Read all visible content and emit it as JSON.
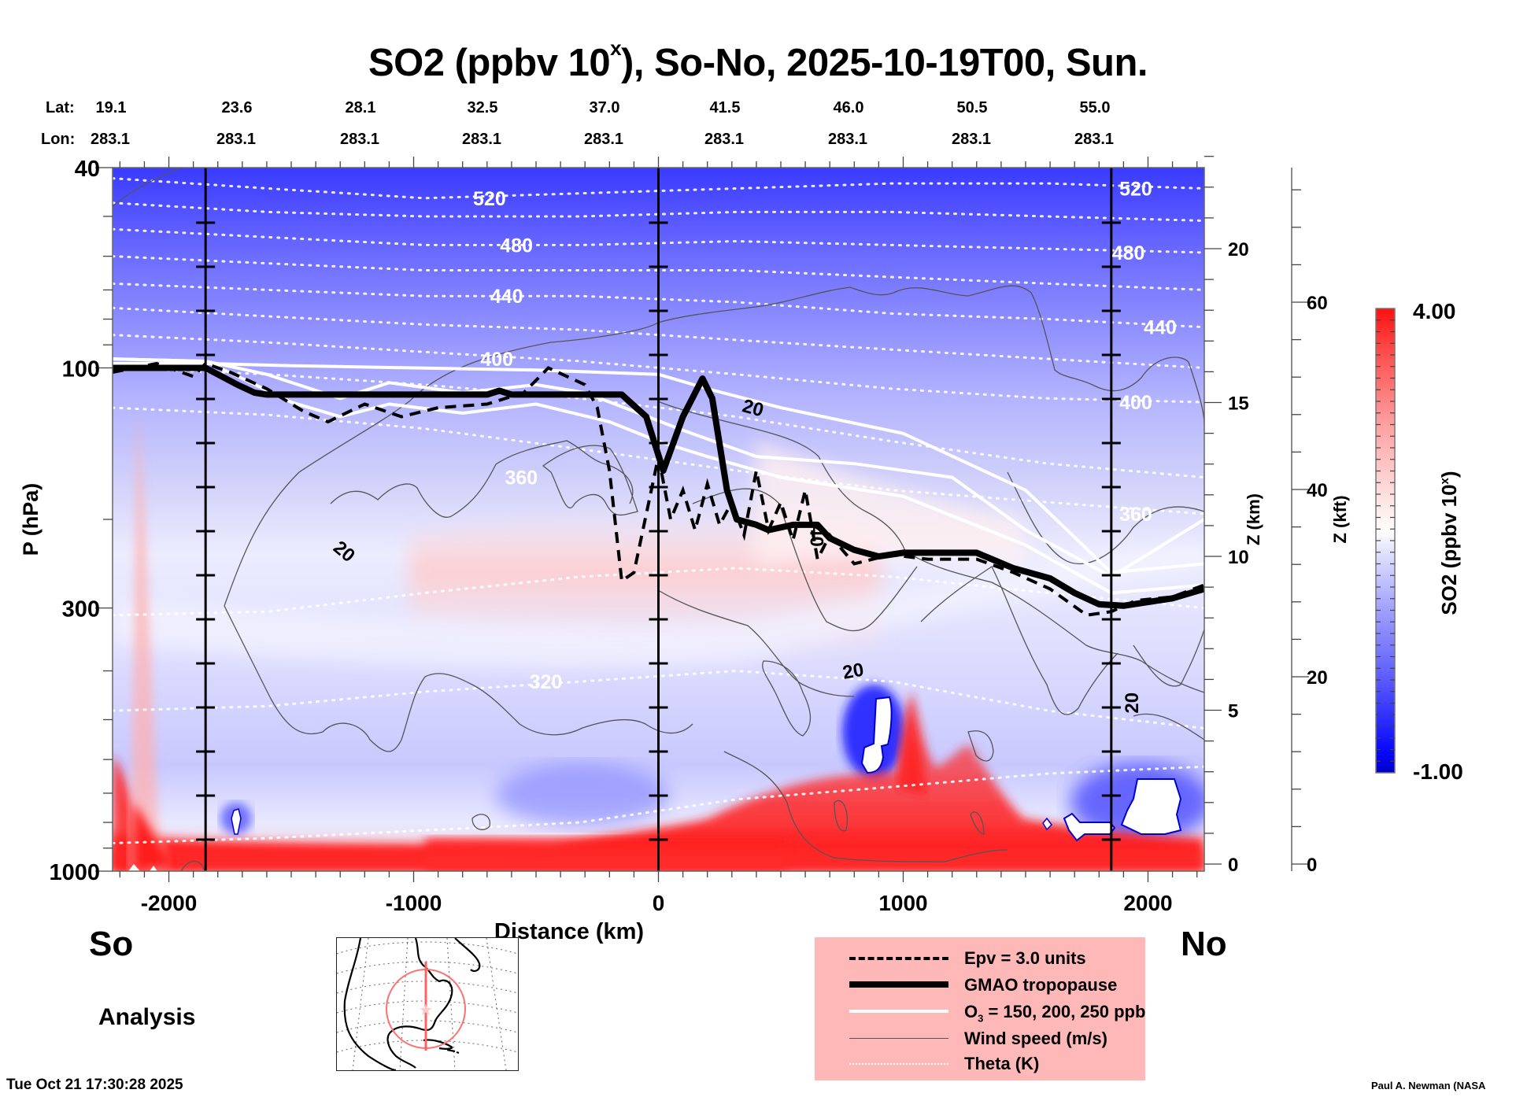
{
  "header": {
    "title_main": "SO2 (ppbv 10",
    "title_sup": "x",
    "title_rest": "), So-No, 2025-10-19T00, Sun."
  },
  "coords": {
    "lat_label": "Lat:",
    "lon_label": "Lon:",
    "lat": [
      "19.1",
      "23.6",
      "28.1",
      "32.5",
      "37.0",
      "41.5",
      "46.0",
      "50.5",
      "55.0"
    ],
    "lon": [
      "283.1",
      "283.1",
      "283.1",
      "283.1",
      "283.1",
      "283.1",
      "283.1",
      "283.1",
      "283.1"
    ]
  },
  "chart_data": {
    "type": "heatmap",
    "title": "SO2 (ppbv 10^x), So-No, 2025-10-19T00, Sun.",
    "xlabel": "Distance (km)",
    "ylabel": "P (hPa)",
    "y2label": "Z (km)",
    "y3label": "Z (kft)",
    "colorbar_label": "SO2 (ppbv 10^x)",
    "colorbar_label_main": "SO2 (ppbv 10",
    "colorbar_label_sup": "x",
    "colorbar_label_rest": ")",
    "colorbar_range": [
      -1.0,
      4.0
    ],
    "colorbar_ticks": [
      "4.00",
      "-1.00"
    ],
    "colormap": [
      "#0000c8",
      "#1010ff",
      "#6060ff",
      "#a8a8ff",
      "#e0e0ff",
      "#ffffff",
      "#ffe0e0",
      "#ffa0a0",
      "#ff6060",
      "#ff1010"
    ],
    "xlim": [
      -2230,
      2230
    ],
    "x_ticks": [
      -2000,
      -1000,
      0,
      1000,
      2000
    ],
    "x_tick_labels": [
      "-2000",
      "-1000",
      "0",
      "1000",
      "2000"
    ],
    "ylim_hpa": [
      1000,
      40
    ],
    "y_scale": "log",
    "y_ticks": [
      40,
      100,
      300,
      1000
    ],
    "y_tick_labels": [
      "40",
      "100",
      "300",
      "1000"
    ],
    "z_km_ticks": [
      0,
      5,
      10,
      15,
      20
    ],
    "z_km_tick_labels": [
      "0",
      "5",
      "10",
      "15",
      "20"
    ],
    "z_kft_ticks": [
      0,
      20,
      40,
      60
    ],
    "z_kft_tick_labels": [
      "0",
      "20",
      "40",
      "60"
    ],
    "section_markers_km": [
      -1850,
      0,
      1850
    ],
    "theta_levels_K": [
      320,
      360,
      400,
      440,
      480,
      520
    ],
    "theta_labels": [
      {
        "text": "520",
        "x_km": -690,
        "p": 46
      },
      {
        "text": "480",
        "x_km": -580,
        "p": 57
      },
      {
        "text": "440",
        "x_km": -620,
        "p": 72
      },
      {
        "text": "400",
        "x_km": -660,
        "p": 96
      },
      {
        "text": "360",
        "x_km": -560,
        "p": 165
      },
      {
        "text": "320",
        "x_km": -460,
        "p": 420
      },
      {
        "text": "520",
        "x_km": 1950,
        "p": 44
      },
      {
        "text": "480",
        "x_km": 1920,
        "p": 59
      },
      {
        "text": "440",
        "x_km": 2050,
        "p": 83
      },
      {
        "text": "400",
        "x_km": 1950,
        "p": 117
      },
      {
        "text": "360",
        "x_km": 1950,
        "p": 195
      }
    ],
    "wind_labels": [
      {
        "text": "20",
        "x_km": 380,
        "p": 120
      },
      {
        "text": "20",
        "x_km": -1300,
        "p": 230
      },
      {
        "text": "40",
        "x_km": 620,
        "p": 210
      },
      {
        "text": "20",
        "x_km": 800,
        "p": 400
      },
      {
        "text": "20",
        "x_km": 1960,
        "p": 450
      }
    ],
    "tropopause_hpa": {
      "x": [
        -2230,
        -1850,
        -1720,
        -1650,
        -1600,
        -1200,
        -700,
        -650,
        -600,
        -150,
        -50,
        20,
        100,
        180,
        220,
        280,
        320,
        400,
        450,
        550,
        650,
        700,
        800,
        900,
        1000,
        1100,
        1300,
        1450,
        1600,
        1700,
        1800,
        1900,
        2000,
        2100,
        2230
      ],
      "p": [
        100,
        100,
        108,
        112,
        113,
        113,
        113,
        111,
        113,
        113,
        125,
        160,
        125,
        105,
        115,
        175,
        200,
        205,
        210,
        205,
        205,
        218,
        230,
        237,
        233,
        233,
        233,
        250,
        262,
        280,
        295,
        297,
        292,
        287,
        275
      ]
    },
    "epv_3_hpa": {
      "x": [
        -2230,
        -2050,
        -1900,
        -1850,
        -1750,
        -1600,
        -1450,
        -1350,
        -1200,
        -1050,
        -900,
        -700,
        -550,
        -450,
        -300,
        -250,
        -200,
        -150,
        -100,
        0,
        50,
        100,
        150,
        200,
        250,
        300,
        350,
        400,
        450,
        500,
        550,
        600,
        650,
        700,
        800,
        950,
        1100,
        1300,
        1450,
        1600,
        1750,
        1850,
        1950,
        2100,
        2230
      ],
      "p": [
        102,
        98,
        104,
        98,
        102,
        110,
        122,
        128,
        118,
        125,
        120,
        118,
        112,
        100,
        108,
        120,
        160,
        265,
        255,
        150,
        200,
        175,
        210,
        170,
        205,
        185,
        215,
        160,
        210,
        185,
        220,
        175,
        240,
        215,
        245,
        235,
        240,
        240,
        255,
        275,
        310,
        305,
        290,
        285,
        270
      ]
    },
    "o3_contours_hpa": [
      {
        "name": "150 ppb",
        "x": [
          -2230,
          -1850,
          -1500,
          -1000,
          -500,
          0,
          200,
          500,
          1000,
          1500,
          1850,
          2230
        ],
        "p": [
          98,
          98,
          99,
          100,
          101,
          103,
          110,
          120,
          135,
          175,
          255,
          245
        ]
      },
      {
        "name": "200 ppb",
        "x": [
          -2230,
          -1850,
          -1600,
          -1300,
          -1100,
          -800,
          -500,
          -300,
          -100,
          100,
          400,
          800,
          1200,
          1500,
          1850,
          2230
        ],
        "p": [
          96,
          97,
          103,
          115,
          107,
          112,
          108,
          112,
          122,
          133,
          150,
          155,
          165,
          210,
          260,
          200
        ]
      },
      {
        "name": "250 ppb",
        "x": [
          -2230,
          -1850,
          -1700,
          -1500,
          -1300,
          -1100,
          -800,
          -500,
          -200,
          0,
          200,
          500,
          1000,
          1500,
          1850,
          2230
        ],
        "p": [
          96,
          97,
          105,
          117,
          125,
          118,
          123,
          118,
          128,
          140,
          150,
          165,
          180,
          225,
          280,
          270
        ]
      }
    ]
  },
  "labels": {
    "south": "So",
    "north": "No",
    "analysis": "Analysis",
    "timestamp": "Tue Oct 21 17:30:28 2025",
    "credit": "Paul A. Newman (NASA"
  },
  "legend": {
    "items": [
      {
        "label": "Epv = 3.0 units",
        "style": "dashed-black"
      },
      {
        "label": "GMAO tropopause",
        "style": "thick-black"
      },
      {
        "label_main": "O",
        "label_sub": "3",
        "label_rest": " = 150, 200, 250 ppb",
        "style": "white"
      },
      {
        "label": "Wind speed (m/s)",
        "style": "thin-gray"
      },
      {
        "label": "Theta (K)",
        "style": "dotted-white"
      }
    ],
    "background": "#ffb8b8"
  },
  "colors": {
    "tropopause": "#000000",
    "epv": "#000000",
    "o3": "#ffffff",
    "wind": "#555555",
    "theta": "#ffffff",
    "map_track": "#ff6b6b"
  }
}
